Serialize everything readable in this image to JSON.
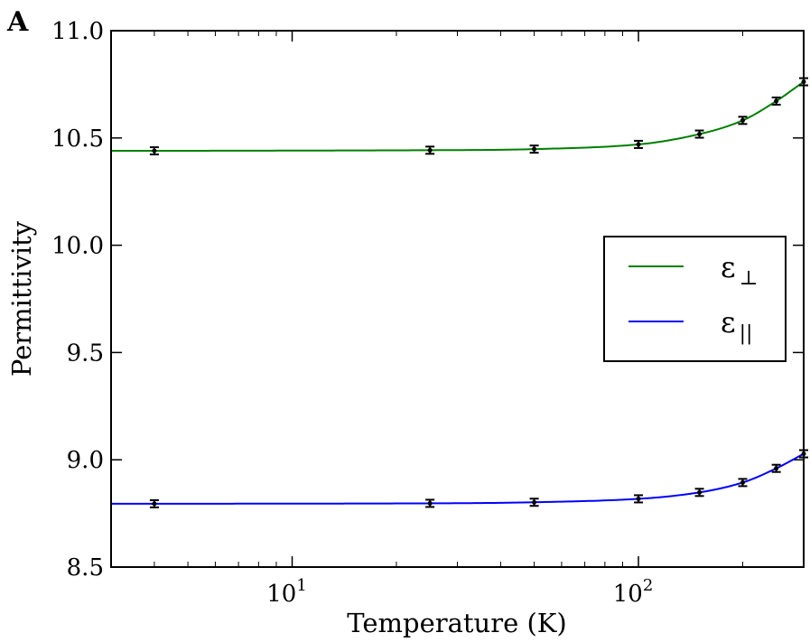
{
  "panel_label": "A",
  "chart_data": {
    "type": "line",
    "title": "",
    "xlabel": "Temperature (K)",
    "ylabel": "Permittivity",
    "x_scale": "log",
    "xlim": [
      3.0,
      300
    ],
    "ylim": [
      8.5,
      11.0
    ],
    "x_tick_labels": [
      {
        "base": "10",
        "exp": "1",
        "value": 10
      },
      {
        "base": "10",
        "exp": "2",
        "value": 100
      }
    ],
    "y_ticks": [
      "8.5",
      "9.0",
      "9.5",
      "10.0",
      "10.5",
      "11.0"
    ],
    "grid": false,
    "legend_position": "right",
    "series": [
      {
        "name": "ε⊥",
        "legend_symbol": "ε",
        "legend_subscript": "⊥",
        "color": "#008000",
        "points": [
          {
            "x": 4,
            "y": 10.44
          },
          {
            "x": 25,
            "y": 10.443
          },
          {
            "x": 50,
            "y": 10.448
          },
          {
            "x": 100,
            "y": 10.47
          },
          {
            "x": 150,
            "y": 10.518
          },
          {
            "x": 200,
            "y": 10.582
          },
          {
            "x": 250,
            "y": 10.672
          },
          {
            "x": 300,
            "y": 10.762
          }
        ]
      },
      {
        "name": "ε||",
        "legend_symbol": "ε",
        "legend_subscript": "||",
        "color": "#0000ff",
        "points": [
          {
            "x": 4,
            "y": 8.795
          },
          {
            "x": 25,
            "y": 8.797
          },
          {
            "x": 50,
            "y": 8.802
          },
          {
            "x": 100,
            "y": 8.818
          },
          {
            "x": 150,
            "y": 8.848
          },
          {
            "x": 200,
            "y": 8.894
          },
          {
            "x": 250,
            "y": 8.96
          },
          {
            "x": 300,
            "y": 9.028
          }
        ]
      }
    ],
    "error_bar_color": "#000000"
  }
}
